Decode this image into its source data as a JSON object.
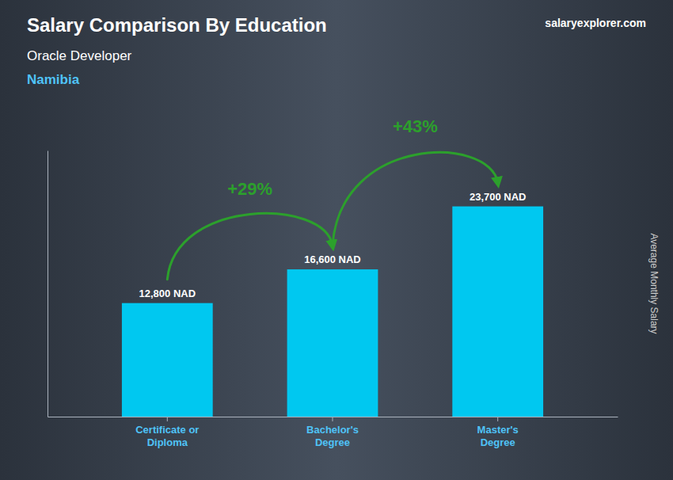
{
  "chart_data": {
    "type": "bar",
    "title": "Salary Comparison By Education",
    "subtitle": "Oracle Developer",
    "ylabel": "Average Monthly Salary",
    "categories": [
      "Certificate or\nDiploma",
      "Bachelor's\nDegree",
      "Master's\nDegree"
    ],
    "values": [
      12800,
      16600,
      23700
    ],
    "value_labels": [
      "12,800 NAD",
      "16,600 NAD",
      "23,700 NAD"
    ],
    "data_labels": true,
    "color": "#00c8f0",
    "ylim": [
      0,
      30000
    ],
    "tick_labels": "x",
    "grid": false,
    "annotations": [
      {
        "type": "location",
        "text": "Namibia"
      },
      {
        "type": "source",
        "text": "salaryexplorer.com"
      },
      {
        "type": "change",
        "text": "+29%"
      },
      {
        "type": "change",
        "text": "+43%"
      }
    ]
  }
}
